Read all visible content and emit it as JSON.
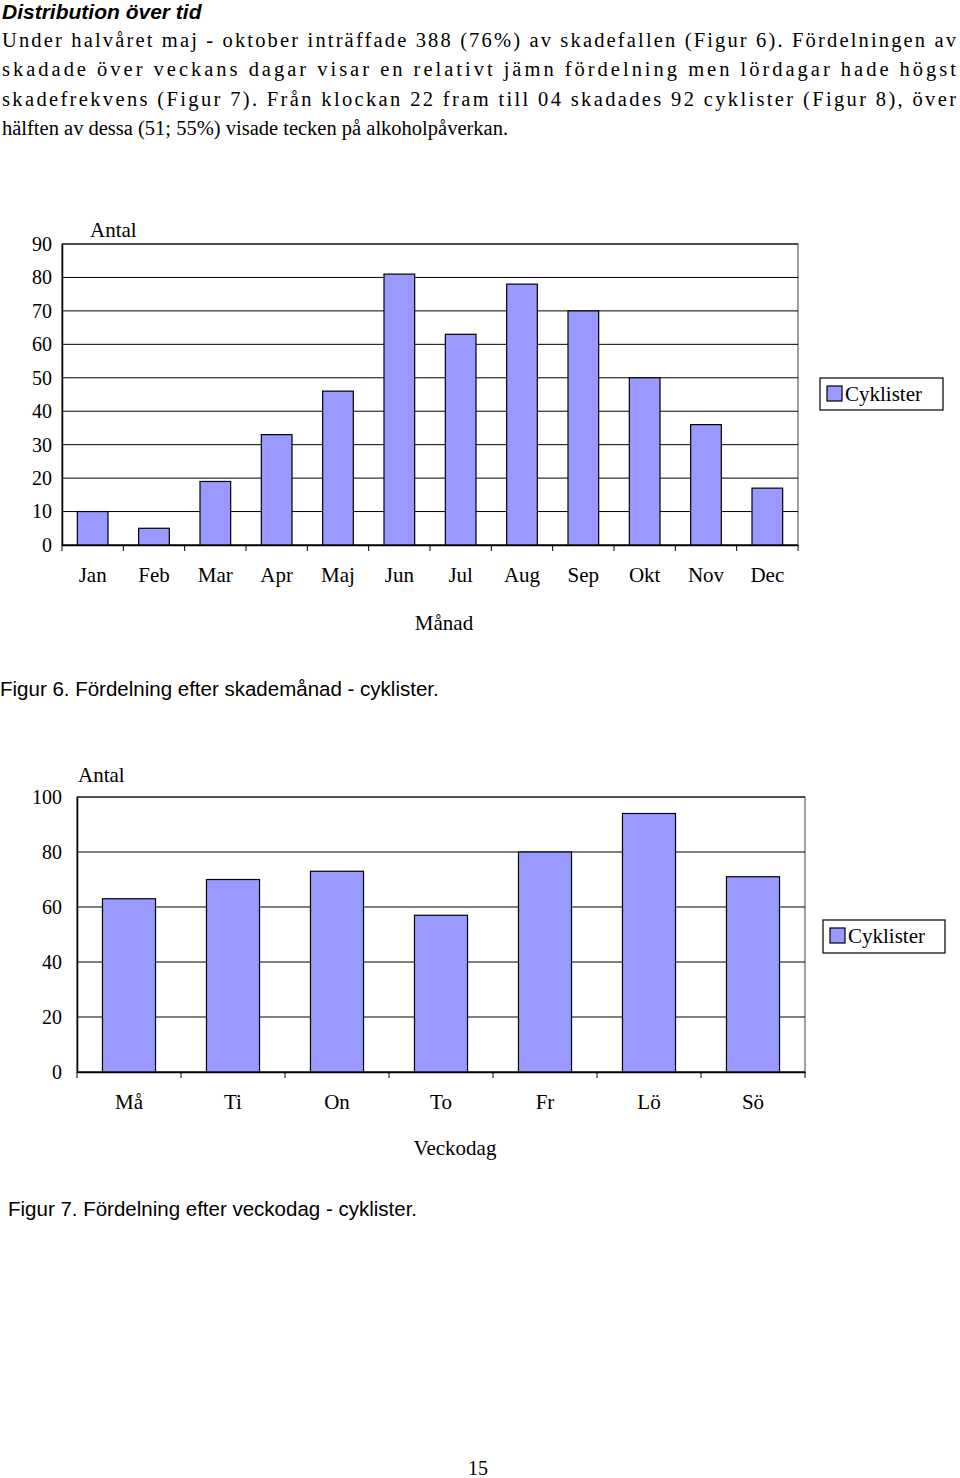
{
  "document": {
    "heading": "Distribution över tid",
    "paragraph": [
      "Under halvåret maj - oktober inträffade 388 (76%) av skadefallen (Figur 6). Fördelningen av",
      "skadade över veckans dagar visar en relativt jämn fördelning men lördagar hade högst",
      "skadefrekvens (Figur 7). Från klockan 22 fram till 04 skadades 92 cyklister (Figur 8), över",
      "hälften av dessa (51; 55%) visade tecken på alkoholpåverkan."
    ],
    "page_number": "15"
  },
  "chart_data": [
    {
      "type": "bar",
      "title": "Figur 6. Fördelning efter skademånad - cyklister.",
      "ylabel": "Antal",
      "xlabel": "Månad",
      "categories": [
        "Jan",
        "Feb",
        "Mar",
        "Apr",
        "Maj",
        "Jun",
        "Jul",
        "Aug",
        "Sep",
        "Okt",
        "Nov",
        "Dec"
      ],
      "series": [
        {
          "name": "Cyklister",
          "color": "#9999ff",
          "values": [
            10,
            5,
            19,
            33,
            46,
            81,
            63,
            78,
            70,
            50,
            36,
            17
          ]
        }
      ],
      "ylim": [
        0,
        90
      ],
      "yticks": [
        0,
        10,
        20,
        30,
        40,
        50,
        60,
        70,
        80,
        90
      ],
      "grid": true,
      "legend": "right"
    },
    {
      "type": "bar",
      "title": "Figur 7. Fördelning efter veckodag - cyklister.",
      "ylabel": "Antal",
      "xlabel": "Veckodag",
      "categories": [
        "Må",
        "Ti",
        "On",
        "To",
        "Fr",
        "Lö",
        "Sö"
      ],
      "series": [
        {
          "name": "Cyklister",
          "color": "#9999ff",
          "values": [
            63,
            70,
            73,
            57,
            80,
            94,
            71
          ]
        }
      ],
      "ylim": [
        0,
        100
      ],
      "yticks": [
        0,
        20,
        40,
        60,
        80,
        100
      ],
      "grid": true,
      "legend": "right"
    }
  ]
}
